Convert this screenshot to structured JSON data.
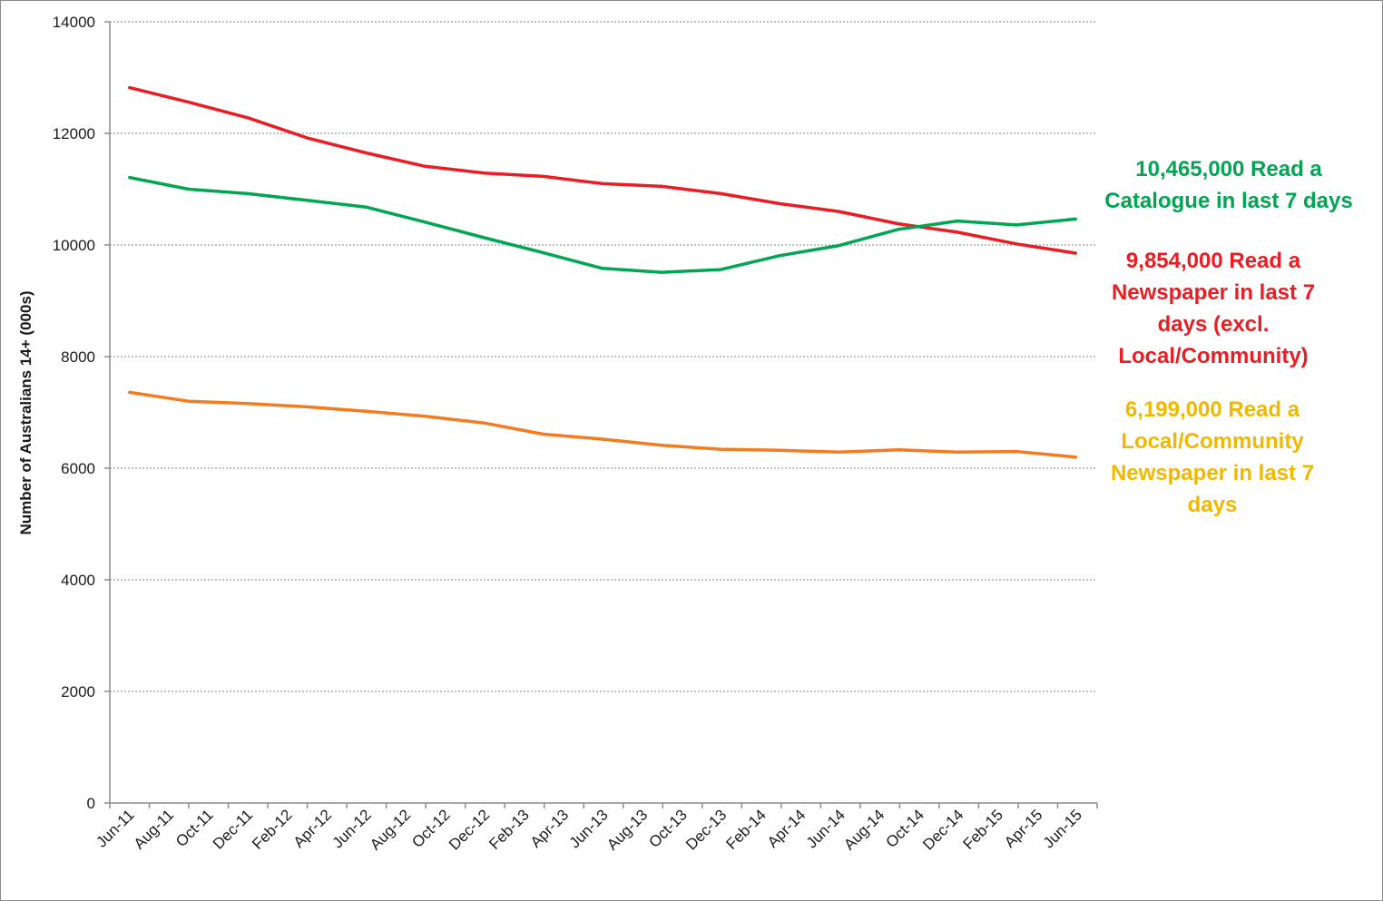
{
  "chart_data": {
    "type": "line",
    "title": "",
    "xlabel": "",
    "ylabel": "Number of Australians 14+ (000s)",
    "ylim": [
      0,
      14000
    ],
    "yticks": [
      "0",
      "2000",
      "4000",
      "6000",
      "8000",
      "10000",
      "12000",
      "14000"
    ],
    "grid": true,
    "categories": [
      "Jun-11",
      "Aug-11",
      "Oct-11",
      "Dec-11",
      "Feb-12",
      "Apr-12",
      "Jun-12",
      "Aug-12",
      "Oct-12",
      "Dec-12",
      "Feb-13",
      "Apr-13",
      "Jun-13",
      "Aug-13",
      "Oct-13",
      "Dec-13",
      "Feb-14",
      "Apr-14",
      "Jun-14",
      "Aug-14",
      "Oct-14",
      "Dec-14",
      "Feb-15",
      "Apr-15",
      "Jun-15"
    ],
    "series": [
      {
        "key": "newspaper",
        "color": "#ec1c24",
        "x": [
          "Jun-11",
          "Sep-11",
          "Dec-11",
          "Mar-12",
          "Jun-12",
          "Sep-12",
          "Dec-12",
          "Mar-13",
          "Jun-13",
          "Sep-13",
          "Dec-13",
          "Mar-14",
          "Jun-14",
          "Sep-14",
          "Dec-14",
          "Mar-15",
          "Jun-15"
        ],
        "values": [
          12820,
          12560,
          12280,
          11920,
          11650,
          11410,
          11290,
          11230,
          11100,
          11050,
          10920,
          10740,
          10600,
          10380,
          10230,
          10020,
          9854
        ]
      },
      {
        "key": "catalogue",
        "color": "#00a651",
        "x": [
          "Jun-11",
          "Sep-11",
          "Dec-11",
          "Mar-12",
          "Jun-12",
          "Sep-12",
          "Dec-12",
          "Mar-13",
          "Jun-13",
          "Sep-13",
          "Dec-13",
          "Mar-14",
          "Jun-14",
          "Sep-14",
          "Dec-14",
          "Mar-15",
          "Jun-15"
        ],
        "values": [
          11210,
          11000,
          10920,
          10800,
          10680,
          10410,
          10130,
          9860,
          9580,
          9510,
          9560,
          9810,
          9990,
          10280,
          10430,
          10360,
          10465
        ]
      },
      {
        "key": "local",
        "color": "#f47b20",
        "x": [
          "Jun-11",
          "Sep-11",
          "Dec-11",
          "Mar-12",
          "Jun-12",
          "Sep-12",
          "Dec-12",
          "Mar-13",
          "Jun-13",
          "Sep-13",
          "Dec-13",
          "Mar-14",
          "Jun-14",
          "Sep-14",
          "Dec-14",
          "Mar-15",
          "Jun-15"
        ],
        "values": [
          7360,
          7200,
          7160,
          7100,
          7020,
          6930,
          6810,
          6610,
          6520,
          6410,
          6340,
          6320,
          6290,
          6330,
          6290,
          6300,
          6199
        ]
      }
    ],
    "annotations": [
      {
        "key": "catalogue",
        "color": "#00a651",
        "lines": [
          "10,465,000 Read a",
          "Catalogue in last 7 days"
        ]
      },
      {
        "key": "newspaper",
        "color": "#ec1c24",
        "lines": [
          "9,854,000 Read a",
          "Newspaper in last 7",
          "days (excl.",
          "Local/Community)"
        ]
      },
      {
        "key": "local",
        "color": "#f2b800",
        "lines": [
          "6,199,000 Read a",
          "Local/Community",
          "Newspaper in last 7",
          "days"
        ]
      }
    ]
  }
}
